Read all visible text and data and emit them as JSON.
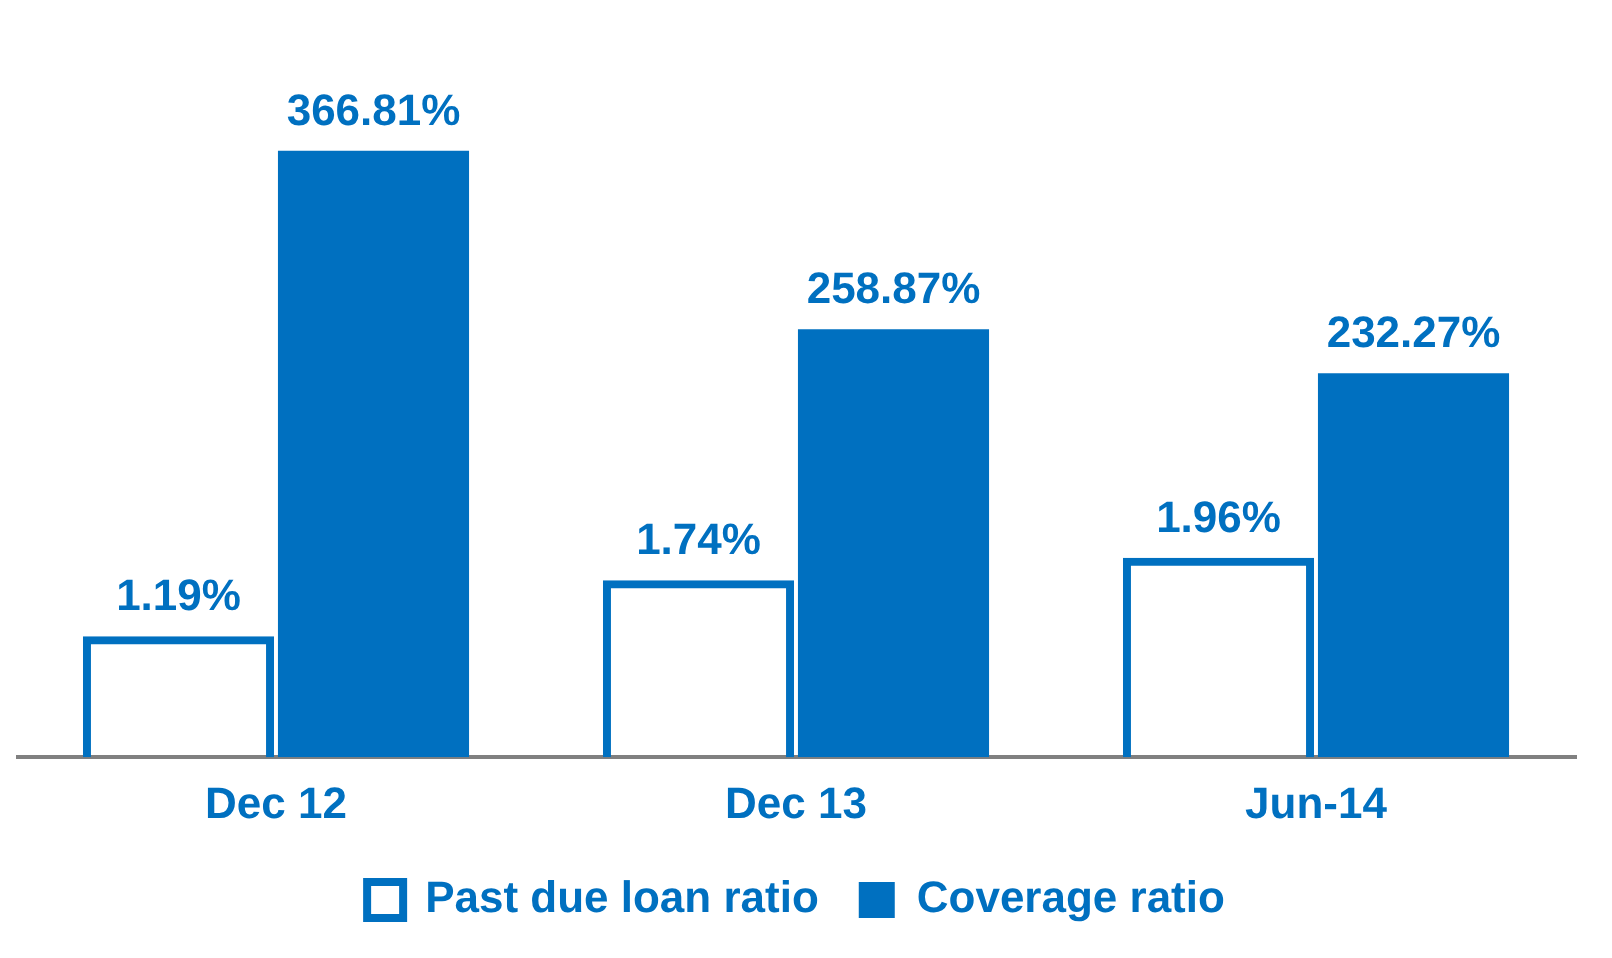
{
  "chart_data": {
    "type": "bar",
    "categories": [
      "Dec 12",
      "Dec 13",
      "Jun-14"
    ],
    "series": [
      {
        "name": "Past due loan ratio",
        "color": "#0070c0",
        "values": [
          1.19,
          1.74,
          1.96
        ],
        "axis": "y2",
        "value_labels": [
          "1.19%",
          "1.74%",
          "1.96%"
        ]
      },
      {
        "name": "Coverage ratio",
        "color": "#0070c0",
        "values": [
          366.81,
          258.87,
          232.27
        ],
        "value_labels": [
          "366.81%",
          "258.87%",
          "232.27%"
        ]
      }
    ],
    "tick_labels": "x",
    "grid": false,
    "legend": "bottom"
  }
}
